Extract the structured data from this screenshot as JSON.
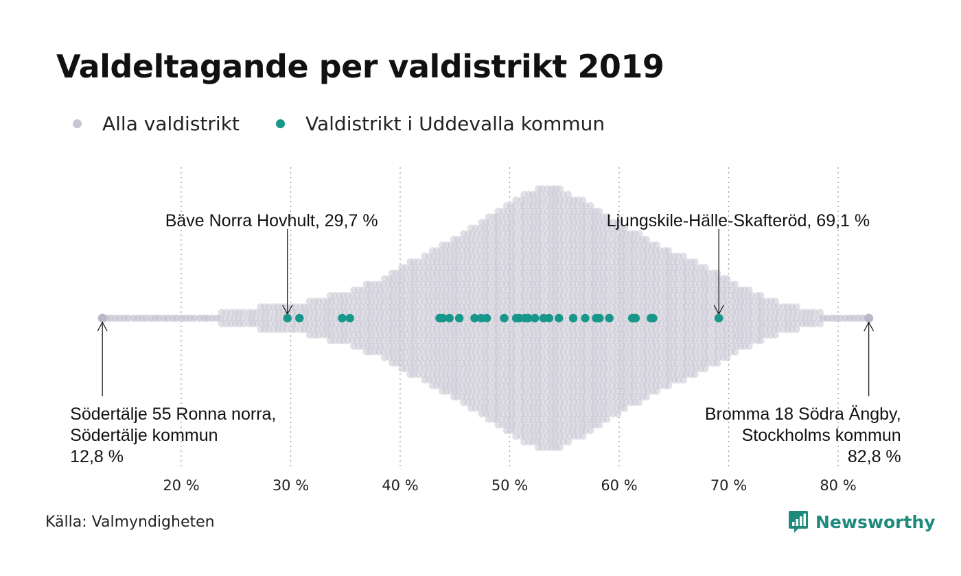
{
  "colors": {
    "all": "#c8c6d4",
    "uddevalla": "#17968a",
    "grid": "#9a9a9a",
    "logo": "#1e8a7c"
  },
  "source": "Källa: Valmyndigheten",
  "logo": {
    "text": "Newsworthy",
    "icon": "bar-chart-icon"
  },
  "chart_data": {
    "type": "scatter",
    "subtype": "beeswarm",
    "title": "Valdeltagande per valdistrikt 2019",
    "xlim": [
      12,
      84
    ],
    "grid": "vertical-dotted",
    "legend_placement": "top-left",
    "x_ticks": [
      {
        "value": 20,
        "label": "20 %"
      },
      {
        "value": 30,
        "label": "30 %"
      },
      {
        "value": 40,
        "label": "40 %"
      },
      {
        "value": 50,
        "label": "50 %"
      },
      {
        "value": 60,
        "label": "60 %"
      },
      {
        "value": 70,
        "label": "70 %"
      },
      {
        "value": 80,
        "label": "80 %"
      }
    ],
    "series": [
      {
        "name": "Alla valdistrikt",
        "color": "#c8c6d4",
        "density_profile": [
          [
            12.8,
            1
          ],
          [
            16,
            1
          ],
          [
            18,
            2
          ],
          [
            20,
            3
          ],
          [
            22,
            5
          ],
          [
            24,
            9
          ],
          [
            26,
            14
          ],
          [
            28,
            18
          ],
          [
            30,
            17
          ],
          [
            32,
            28
          ],
          [
            34,
            34
          ],
          [
            36,
            44
          ],
          [
            38,
            56
          ],
          [
            40,
            76
          ],
          [
            42,
            90
          ],
          [
            44,
            110
          ],
          [
            46,
            128
          ],
          [
            48,
            150
          ],
          [
            50,
            170
          ],
          [
            52,
            186
          ],
          [
            53.5,
            198
          ],
          [
            55,
            185
          ],
          [
            57,
            170
          ],
          [
            59,
            150
          ],
          [
            61,
            130
          ],
          [
            63,
            112
          ],
          [
            65,
            96
          ],
          [
            67,
            82
          ],
          [
            69,
            66
          ],
          [
            71,
            48
          ],
          [
            73,
            34
          ],
          [
            75,
            22
          ],
          [
            77,
            14
          ],
          [
            79,
            5
          ],
          [
            80.5,
            2
          ],
          [
            82.8,
            1
          ]
        ]
      },
      {
        "name": "Valdistrikt i Uddevalla kommun",
        "color": "#17968a",
        "values": [
          29.7,
          30.8,
          34.7,
          35.4,
          43.6,
          43.9,
          44.5,
          45.4,
          46.8,
          47.4,
          47.9,
          49.5,
          50.6,
          50.9,
          51.4,
          51.7,
          52.3,
          53.1,
          53.6,
          54.5,
          55.8,
          56.9,
          57.9,
          58.2,
          59.1,
          61.2,
          61.5,
          62.9,
          63.1,
          69.1
        ]
      }
    ],
    "annotations": [
      {
        "x": 29.7,
        "lines": [
          "Bäve Norra Hovhult, 29,7 %"
        ],
        "position": "above",
        "anchor": "start"
      },
      {
        "x": 69.1,
        "lines": [
          "Ljungskile-Hälle-Skafteröd, 69,1 %"
        ],
        "position": "above",
        "anchor": "end"
      },
      {
        "x": 12.8,
        "lines": [
          "Södertälje 55 Ronna norra,",
          "Södertälje kommun",
          "12,8 %"
        ],
        "position": "below",
        "anchor": "start"
      },
      {
        "x": 82.8,
        "lines": [
          "Bromma 18 Södra Ängby,",
          "Stockholms kommun",
          "82,8 %"
        ],
        "position": "below",
        "anchor": "end"
      }
    ]
  }
}
